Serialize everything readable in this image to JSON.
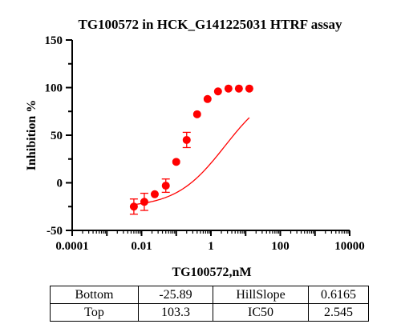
{
  "chart_data": {
    "type": "scatter",
    "title": "TG100572 in HCK_G141225031 HTRF assay",
    "xlabel": "TG100572,nM",
    "ylabel": "Inhibition %",
    "x_scale": "log",
    "xlim": [
      0.0001,
      10000
    ],
    "ylim": [
      -50,
      150
    ],
    "x_tick_labels": [
      "0.0001",
      "0.01",
      "1",
      "100",
      "10000"
    ],
    "y_tick_labels": [
      "-50",
      "0",
      "50",
      "100",
      "150"
    ],
    "color": "#ff0000",
    "series": [
      {
        "x": [
          0.006,
          0.012,
          0.024,
          0.05,
          0.1,
          0.2,
          0.4,
          0.8,
          1.6,
          3.2,
          6.4,
          12.8
        ],
        "y": [
          -25,
          -20,
          -12,
          -3,
          22,
          45,
          72,
          88,
          96,
          99,
          99,
          99
        ],
        "error": [
          8,
          9,
          2,
          7,
          2,
          8,
          2,
          2,
          2,
          2,
          2,
          2
        ]
      }
    ],
    "fit": {
      "bottom": -25.89,
      "top": 103.3,
      "hillslope": 0.6165,
      "ic50": 2.545
    }
  },
  "params_table": [
    [
      "Bottom",
      "-25.89",
      "HillSlope",
      "0.6165"
    ],
    [
      "Top",
      "103.3",
      "IC50",
      "2.545"
    ]
  ]
}
